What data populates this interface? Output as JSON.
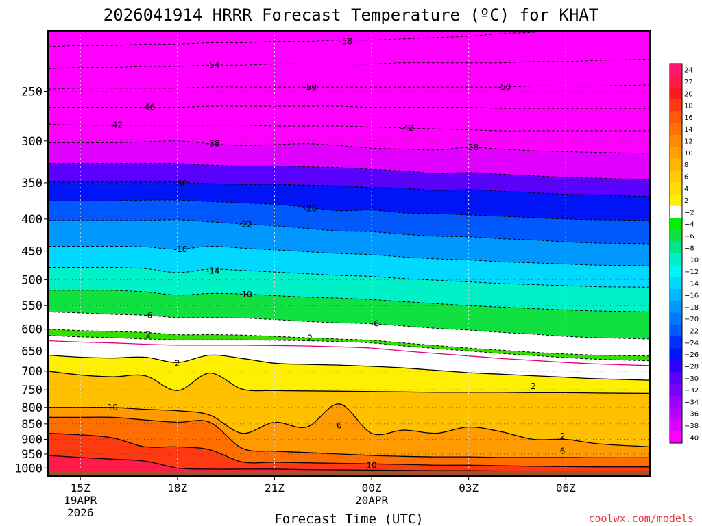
{
  "chart_data": {
    "type": "heatmap",
    "title": "2026041914 HRRR Forecast Temperature (ºC) for KHAT",
    "xlabel": "Forecast Time (UTC)",
    "ylabel": "",
    "credit": "coolwx.com/models",
    "y_axis": {
      "scale": "log",
      "reversed": true,
      "ylim": [
        1030,
        200
      ],
      "ticks": [
        250,
        300,
        350,
        400,
        450,
        500,
        550,
        600,
        650,
        700,
        750,
        800,
        850,
        900,
        950,
        1000
      ]
    },
    "x_axis": {
      "xlim": [
        14,
        32.6
      ],
      "ticks": [
        {
          "x": 15,
          "label": "15Z",
          "line2": "19APR",
          "line3": "2026"
        },
        {
          "x": 18,
          "label": "18Z",
          "line2": "",
          "line3": ""
        },
        {
          "x": 21,
          "label": "21Z",
          "line2": "",
          "line3": ""
        },
        {
          "x": 24,
          "label": "00Z",
          "line2": "20APR",
          "line3": ""
        },
        {
          "x": 27,
          "label": "03Z",
          "line2": "",
          "line3": ""
        },
        {
          "x": 30,
          "label": "06Z",
          "line2": "",
          "line3": ""
        }
      ]
    },
    "x": [
      14,
      15,
      16,
      17,
      18,
      19,
      20,
      21,
      22,
      23,
      24,
      25,
      26,
      27,
      28,
      29,
      30,
      31,
      32.6
    ],
    "isotherms": [
      {
        "t": -58,
        "p": [
          212,
          211,
          211,
          210,
          210,
          209,
          209,
          208,
          208,
          207,
          207,
          206,
          205,
          204,
          202,
          201,
          199,
          198,
          196
        ]
      },
      {
        "t": -54,
        "p": [
          230,
          229,
          229,
          228,
          228,
          227,
          227,
          226,
          226,
          226,
          226,
          225,
          225,
          225,
          225,
          224,
          224,
          223,
          222
        ]
      },
      {
        "t": -50,
        "p": [
          248,
          247,
          247,
          247,
          247,
          246,
          246,
          246,
          246,
          246,
          246,
          246,
          246,
          246,
          246,
          245,
          245,
          245,
          244
        ]
      },
      {
        "t": -46,
        "p": [
          265,
          265,
          265,
          265,
          265,
          264,
          264,
          264,
          264,
          264,
          265,
          265,
          265,
          265,
          266,
          266,
          266,
          266,
          266
        ]
      },
      {
        "t": -42,
        "p": [
          282,
          283,
          283,
          283,
          283,
          283,
          283,
          284,
          284,
          284,
          285,
          286,
          287,
          288,
          289,
          289,
          289,
          289,
          289
        ]
      },
      {
        "t": -38,
        "p": [
          302,
          302,
          302,
          301,
          300,
          303,
          305,
          304,
          303,
          305,
          308,
          309,
          310,
          307,
          309,
          311,
          312,
          313,
          314
        ]
      },
      {
        "t": -34,
        "p": [
          326,
          326,
          326,
          326,
          326,
          328,
          329,
          329,
          330,
          331,
          333,
          335,
          338,
          337,
          339,
          341,
          343,
          344,
          346
        ]
      },
      {
        "t": -30,
        "p": [
          349,
          349,
          349,
          349,
          349,
          351,
          352,
          352,
          353,
          354,
          356,
          357,
          360,
          359,
          361,
          363,
          365,
          366,
          368
        ]
      },
      {
        "t": -26,
        "p": [
          374,
          374,
          374,
          373,
          373,
          375,
          377,
          379,
          383,
          388,
          387,
          391,
          392,
          394,
          396,
          398,
          400,
          401,
          402
        ]
      },
      {
        "t": -22,
        "p": [
          402,
          402,
          402,
          402,
          401,
          404,
          407,
          410,
          414,
          418,
          419,
          423,
          426,
          427,
          430,
          432,
          435,
          437,
          438
        ]
      },
      {
        "t": -18,
        "p": [
          442,
          442,
          442,
          443,
          447,
          442,
          445,
          448,
          451,
          454,
          456,
          460,
          463,
          465,
          468,
          470,
          472,
          474,
          475
        ]
      },
      {
        "t": -14,
        "p": [
          478,
          478,
          478,
          480,
          487,
          481,
          483,
          486,
          489,
          492,
          494,
          498,
          501,
          504,
          507,
          509,
          511,
          513,
          514
        ]
      },
      {
        "t": -10,
        "p": [
          520,
          520,
          520,
          523,
          529,
          526,
          527,
          530,
          533,
          535,
          538,
          542,
          546,
          550,
          553,
          556,
          559,
          561,
          563
        ]
      },
      {
        "t": -6,
        "p": [
          563,
          565,
          568,
          570,
          575,
          575,
          576,
          579,
          583,
          586,
          588,
          593,
          598,
          602,
          607,
          611,
          616,
          619,
          622
        ]
      },
      {
        "t": -2,
        "p": [
          600,
          603,
          605,
          607,
          612,
          612,
          613,
          616,
          619,
          622,
          625,
          631,
          637,
          643,
          648,
          653,
          657,
          660,
          662
        ]
      },
      {
        "t": 2,
        "p": [
          614,
          617,
          619,
          622,
          624,
          624,
          624,
          625,
          626,
          628,
          631,
          638,
          644,
          650,
          656,
          661,
          666,
          670,
          674
        ]
      }
    ],
    "warm_regions": [
      {
        "t": 2,
        "p": [
          660,
          665,
          667,
          665,
          678,
          660,
          668,
          680,
          683,
          685,
          688,
          692,
          698,
          704,
          708,
          712,
          716,
          720,
          724
        ]
      },
      {
        "t": 6,
        "p": [
          700,
          710,
          715,
          712,
          752,
          705,
          748,
          752,
          753,
          754,
          755,
          756,
          757,
          757,
          757,
          758,
          758,
          759,
          760
        ]
      },
      {
        "t": 10,
        "p": [
          800,
          800,
          800,
          806,
          810,
          823,
          880,
          845,
          860,
          790,
          880,
          870,
          880,
          860,
          875,
          900,
          900,
          915,
          925
        ]
      },
      {
        "t": 14,
        "p": [
          830,
          830,
          830,
          838,
          845,
          845,
          930,
          940,
          945,
          950,
          955,
          958,
          960,
          960,
          962,
          962,
          962,
          963,
          963
        ]
      },
      {
        "t": 18,
        "p": [
          880,
          885,
          895,
          925,
          925,
          935,
          978,
          979,
          981,
          983,
          985,
          987,
          990,
          990,
          992,
          994,
          995,
          996,
          996
        ]
      },
      {
        "t": 22,
        "p": [
          955,
          962,
          968,
          975,
          1000,
          1004,
          1004,
          1004,
          1006,
          1007,
          1008,
          1009,
          1010,
          1010,
          1011,
          1012,
          1012,
          1012,
          1012
        ]
      }
    ],
    "contour_labels": [
      {
        "t": -58,
        "x": 23.2,
        "p": 208,
        "text": "-58"
      },
      {
        "t": -54,
        "x": 19.1,
        "p": 227,
        "text": "-54"
      },
      {
        "t": -50,
        "x": 22.1,
        "p": 246,
        "text": "-50"
      },
      {
        "t": -50,
        "x": 28.1,
        "p": 246,
        "text": "-50"
      },
      {
        "t": -46,
        "x": 17.1,
        "p": 265,
        "text": "-46"
      },
      {
        "t": -42,
        "x": 16.1,
        "p": 283,
        "text": "-42"
      },
      {
        "t": -42,
        "x": 25.1,
        "p": 286,
        "text": "-42"
      },
      {
        "t": -38,
        "x": 19.1,
        "p": 303,
        "text": "-38"
      },
      {
        "t": -38,
        "x": 27.1,
        "p": 307,
        "text": "-38"
      },
      {
        "t": -30,
        "x": 18.1,
        "p": 351,
        "text": "-30"
      },
      {
        "t": -26,
        "x": 22.1,
        "p": 385,
        "text": "-26"
      },
      {
        "t": -22,
        "x": 20.1,
        "p": 408,
        "text": "-22"
      },
      {
        "t": -18,
        "x": 18.1,
        "p": 447,
        "text": "-18"
      },
      {
        "t": -14,
        "x": 19.1,
        "p": 484,
        "text": "-14"
      },
      {
        "t": -10,
        "x": 20.1,
        "p": 528,
        "text": "-10"
      },
      {
        "t": -6,
        "x": 17.1,
        "p": 570,
        "text": "-6"
      },
      {
        "t": -6,
        "x": 24.1,
        "p": 588,
        "text": "-6"
      },
      {
        "t": 2,
        "x": 17.1,
        "p": 612,
        "text": "2"
      },
      {
        "t": 2,
        "x": 22.1,
        "p": 620,
        "text": "2"
      },
      {
        "t": 2,
        "x": 18.0,
        "p": 680,
        "text": "2"
      },
      {
        "t": 2,
        "x": 29.0,
        "p": 740,
        "text": "2"
      },
      {
        "t": 10,
        "x": 16.0,
        "p": 800,
        "text": "10"
      },
      {
        "t": 6,
        "x": 23.0,
        "p": 856,
        "text": "6"
      },
      {
        "t": 2,
        "x": 29.9,
        "p": 890,
        "text": "2"
      },
      {
        "t": 6,
        "x": 29.9,
        "p": 940,
        "text": "6"
      },
      {
        "t": 10,
        "x": 24.0,
        "p": 990,
        "text": "10"
      }
    ],
    "colorbar": {
      "levels": [
        24,
        22,
        20,
        18,
        16,
        14,
        12,
        10,
        8,
        6,
        4,
        2,
        -2,
        -4,
        -6,
        -8,
        -10,
        -12,
        -14,
        -16,
        -18,
        -20,
        -22,
        -24,
        -26,
        -28,
        -30,
        -32,
        -34,
        -36,
        -38,
        -40
      ],
      "labels": [
        "24",
        "22",
        "20",
        "18",
        "16",
        "14",
        "12",
        "10",
        "8",
        "6",
        "4",
        "2",
        "−2",
        "−4",
        "−6",
        "−8",
        "−10",
        "−12",
        "−14",
        "−16",
        "−18",
        "−20",
        "−22",
        "−24",
        "−26",
        "−28",
        "−30",
        "−32",
        "−34",
        "−36",
        "−38",
        "−40"
      ],
      "colors": [
        "#ff1a6e",
        "#ff1a4a",
        "#ff1a1a",
        "#ff3a10",
        "#ff5a08",
        "#ff7200",
        "#ff8c00",
        "#ffa000",
        "#ffb400",
        "#ffc800",
        "#ffdd00",
        "#fff000",
        "#ffffff",
        "#00f000",
        "#10e040",
        "#00e68c",
        "#00f0c8",
        "#00f5f5",
        "#00d8ff",
        "#00b8ff",
        "#0098ff",
        "#0078ff",
        "#0058ff",
        "#0030ff",
        "#0014f5",
        "#2a00ff",
        "#5a00ff",
        "#7a00ff",
        "#9a00ff",
        "#b800ff",
        "#d800ff",
        "#ff00ff"
      ]
    },
    "ground_color": "#a0522d",
    "grid": true
  }
}
